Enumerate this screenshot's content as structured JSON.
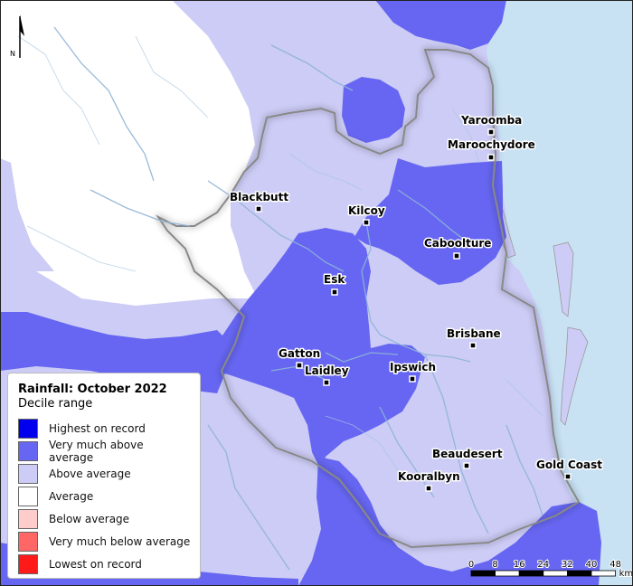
{
  "legend": {
    "title": "Rainfall: October 2022",
    "subtitle": "Decile range",
    "items": [
      {
        "label": "Highest on record",
        "color": "#0000ee"
      },
      {
        "label": "Very much above average",
        "color": "#6666f2"
      },
      {
        "label": "Above average",
        "color": "#ccccf6"
      },
      {
        "label": "Average",
        "color": "#ffffff"
      },
      {
        "label": "Below average",
        "color": "#ffcccc"
      },
      {
        "label": "Very much below average",
        "color": "#ff6666"
      },
      {
        "label": "Lowest on record",
        "color": "#ff1a1a"
      }
    ]
  },
  "towns": [
    {
      "name": "Yaroomba"
    },
    {
      "name": "Maroochydore"
    },
    {
      "name": "Blackbutt"
    },
    {
      "name": "Kilcoy"
    },
    {
      "name": "Caboolture"
    },
    {
      "name": "Esk"
    },
    {
      "name": "Brisbane"
    },
    {
      "name": "Gatton"
    },
    {
      "name": "Laidley"
    },
    {
      "name": "Ipswich"
    },
    {
      "name": "Beaudesert"
    },
    {
      "name": "Gold Coast"
    },
    {
      "name": "Kooralbyn"
    }
  ],
  "scale_bar": {
    "ticks": [
      "0",
      "8",
      "16",
      "24",
      "32",
      "40",
      "48"
    ],
    "unit": "km"
  },
  "north_arrow": {
    "label": "N"
  },
  "colors": {
    "ocean": "#c8e2f4",
    "very_much_above": "#6666f2",
    "above": "#ccccf6",
    "average": "#ffffff",
    "river": "#8fb4d6"
  }
}
